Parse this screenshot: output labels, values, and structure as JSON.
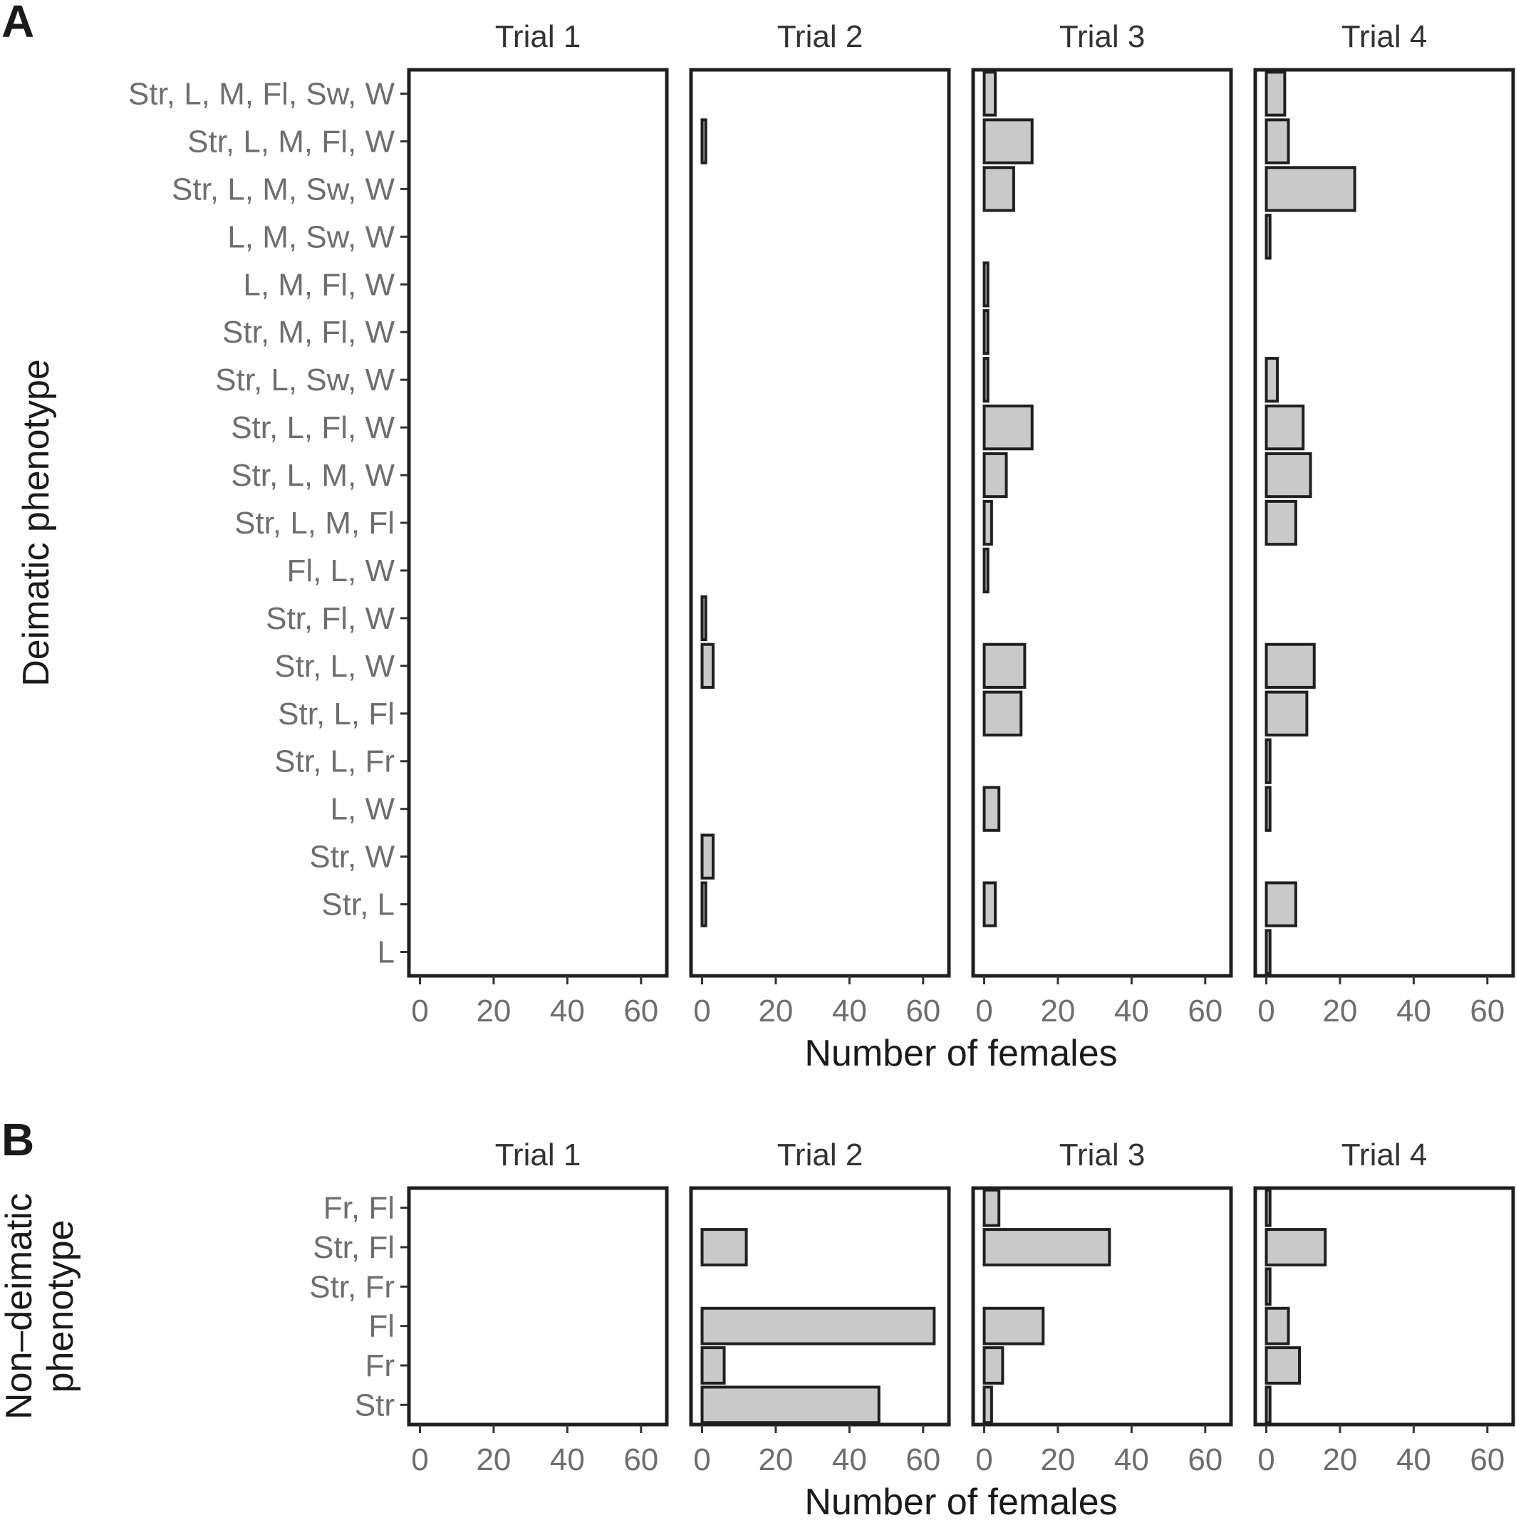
{
  "panel_tags": [
    "A",
    "B"
  ],
  "chart_data": [
    {
      "type": "bar",
      "orientation": "horizontal",
      "panel": "A",
      "ylabel": "Deimatic phenotype",
      "xlabel": "Number of females",
      "xlim": [
        -3,
        67
      ],
      "xticks": [
        0,
        20,
        40,
        60
      ],
      "facets": [
        "Trial 1",
        "Trial 2",
        "Trial 3",
        "Trial 4"
      ],
      "categories": [
        "Str, L, M, Fl, Sw, W",
        "Str, L, M, Fl, W",
        "Str, L, M, Sw, W",
        "L, M, Sw, W",
        "L, M, Fl, W",
        "Str, M, Fl, W",
        "Str, L, Sw, W",
        "Str, L, Fl, W",
        "Str, L, M, W",
        "Str, L, M, Fl",
        "Fl, L, W",
        "Str, Fl, W",
        "Str, L, W",
        "Str, L, Fl",
        "Str, L, Fr",
        "L, W",
        "Str, W",
        "Str, L",
        "L"
      ],
      "series": [
        {
          "name": "Trial 1",
          "values": [
            0,
            0,
            0,
            0,
            0,
            0,
            0,
            0,
            0,
            0,
            0,
            0,
            0,
            0,
            0,
            0,
            0,
            0,
            0
          ]
        },
        {
          "name": "Trial 2",
          "values": [
            0,
            1,
            0,
            0,
            0,
            0,
            0,
            0,
            0,
            0,
            0,
            1,
            3,
            0,
            0,
            0,
            3,
            1,
            0
          ]
        },
        {
          "name": "Trial 3",
          "values": [
            3,
            13,
            8,
            0,
            1,
            1,
            1,
            13,
            6,
            2,
            1,
            0,
            11,
            10,
            0,
            4,
            0,
            3,
            0
          ]
        },
        {
          "name": "Trial 4",
          "values": [
            5,
            6,
            24,
            1,
            0,
            0,
            3,
            10,
            12,
            8,
            0,
            0,
            13,
            11,
            1,
            1,
            0,
            8,
            1
          ]
        }
      ]
    },
    {
      "type": "bar",
      "orientation": "horizontal",
      "panel": "B",
      "ylabel": "Non–deimatic phenotype",
      "xlabel": "Number of females",
      "xlim": [
        -3,
        67
      ],
      "xticks": [
        0,
        20,
        40,
        60
      ],
      "facets": [
        "Trial 1",
        "Trial 2",
        "Trial 3",
        "Trial 4"
      ],
      "categories": [
        "Fr, Fl",
        "Str, Fl",
        "Str, Fr",
        "Fl",
        "Fr",
        "Str"
      ],
      "series": [
        {
          "name": "Trial 1",
          "values": [
            0,
            0,
            0,
            0,
            0,
            0
          ]
        },
        {
          "name": "Trial 2",
          "values": [
            0,
            12,
            0,
            63,
            6,
            48
          ]
        },
        {
          "name": "Trial 3",
          "values": [
            4,
            34,
            0,
            16,
            5,
            2
          ]
        },
        {
          "name": "Trial 4",
          "values": [
            1,
            16,
            1,
            6,
            9,
            1
          ]
        }
      ]
    }
  ]
}
